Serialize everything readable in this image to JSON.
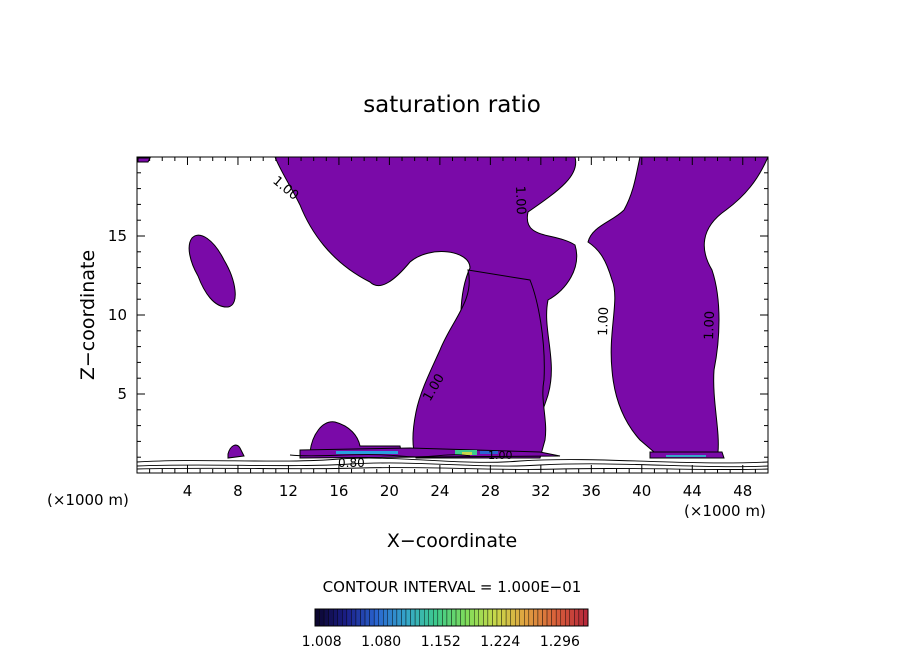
{
  "chart_data": {
    "type": "contour",
    "title": "saturation ratio",
    "xlabel": "X−coordinate",
    "ylabel": "Z−coordinate",
    "x_unit": "(×1000 m)",
    "z_unit": "(×1000 m)",
    "xlim": [
      0,
      50
    ],
    "ylim": [
      0,
      20
    ],
    "xticks": [
      4,
      8,
      12,
      16,
      20,
      24,
      28,
      32,
      36,
      40,
      44,
      48
    ],
    "yticks": [
      5,
      10,
      15
    ],
    "contour_interval_text": "CONTOUR INTERVAL = 1.000E−01",
    "contour_labels": [
      "1.00",
      "1.00",
      "1.00",
      "1.00",
      "1.00",
      "1.00",
      "0.80",
      "1.00"
    ],
    "colorbar": {
      "tick_labels": [
        "1.008",
        "1.080",
        "1.152",
        "1.224",
        "1.296"
      ],
      "min": 1.0,
      "max": 1.33,
      "colors": [
        "#0c0630",
        "#1b1f8a",
        "#2a66d0",
        "#35a7c9",
        "#3ecb8c",
        "#7fdc5a",
        "#c9d84a",
        "#e0a040",
        "#d8603a",
        "#b82a3a"
      ]
    },
    "fill_color": "#7a0aa8",
    "grid": false
  }
}
